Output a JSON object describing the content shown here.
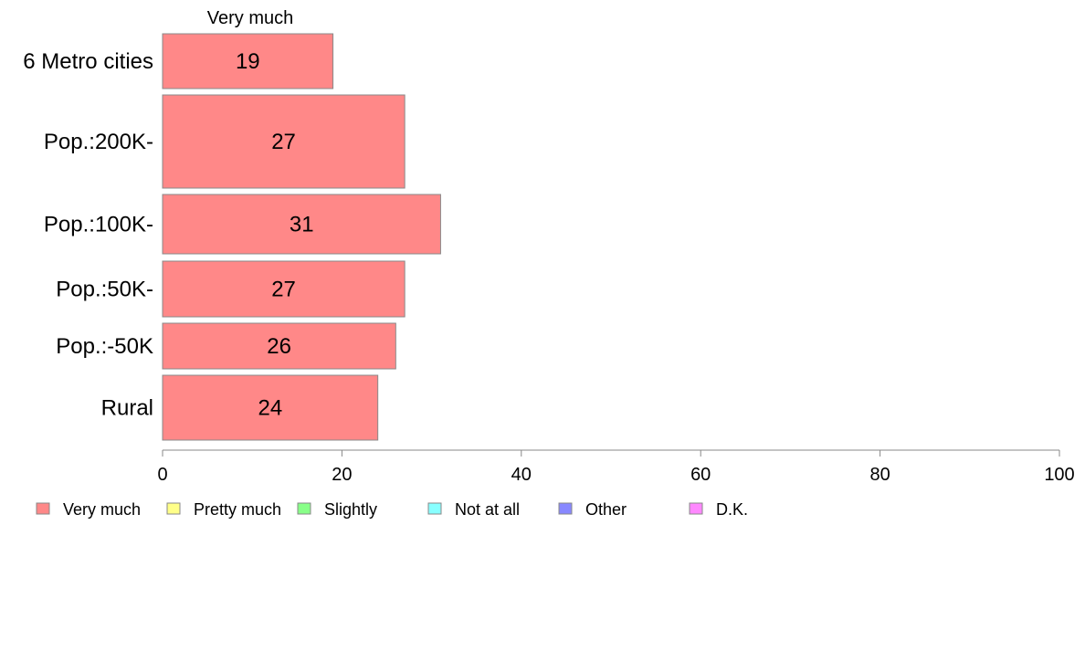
{
  "chart_data": {
    "type": "bar",
    "orientation": "horizontal",
    "stacked": true,
    "column_label": "Very much",
    "categories": [
      "6 Metro cities",
      "Pop.:200K-",
      "Pop.:100K-",
      "Pop.:50K-",
      "Pop.:-50K",
      "Rural"
    ],
    "series": [
      {
        "name": "Very much",
        "color": "#ff8888",
        "values": [
          19,
          27,
          31,
          27,
          26,
          24
        ]
      }
    ],
    "xlim": [
      0,
      100
    ],
    "xticks": [
      0,
      20,
      40,
      60,
      80,
      100
    ],
    "grid": false,
    "legend_position": "bottom",
    "legend": [
      {
        "label": "Very much",
        "color": "#ff8888"
      },
      {
        "label": "Pretty much",
        "color": "#ffff88"
      },
      {
        "label": "Slightly",
        "color": "#88ff88"
      },
      {
        "label": "Not at all",
        "color": "#88ffff"
      },
      {
        "label": "Other",
        "color": "#8888ff"
      },
      {
        "label": "D.K.",
        "color": "#ff88ff"
      }
    ]
  }
}
